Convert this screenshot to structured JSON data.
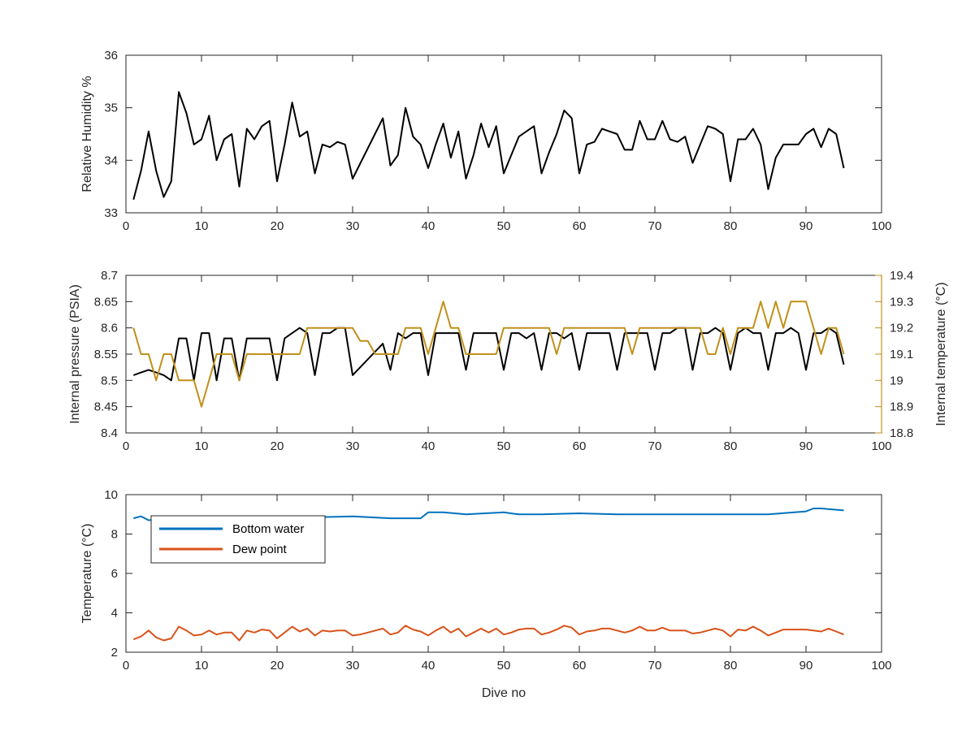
{
  "figure": {
    "xlabel": "Dive no"
  },
  "colors": {
    "black": "#000000",
    "gold": "#c0901a",
    "blue": "#0072bd",
    "orange": "#d95319",
    "axis": "#262626"
  },
  "chart_data": [
    {
      "type": "line",
      "ylabel": "Relative Humidity %",
      "xlim": [
        0,
        100
      ],
      "ylim": [
        33,
        36
      ],
      "xticks": [
        0,
        10,
        20,
        30,
        40,
        50,
        60,
        70,
        80,
        90,
        100
      ],
      "yticks": [
        33,
        34,
        35,
        36
      ],
      "series": [
        {
          "color": "#000000",
          "x": [
            1,
            2,
            3,
            4,
            5,
            6,
            7,
            8,
            9,
            10,
            11,
            12,
            13,
            14,
            15,
            16,
            17,
            18,
            19,
            20,
            21,
            22,
            23,
            24,
            25,
            26,
            27,
            28,
            29,
            30,
            34,
            35,
            36,
            37,
            38,
            39,
            40,
            41,
            42,
            43,
            44,
            45,
            46,
            47,
            48,
            49,
            50,
            52,
            54,
            55,
            56,
            57,
            58,
            59,
            60,
            61,
            62,
            63,
            64,
            65,
            66,
            67,
            68,
            69,
            70,
            71,
            72,
            73,
            74,
            75,
            77,
            78,
            79,
            80,
            81,
            82,
            83,
            84,
            85,
            86,
            87,
            88,
            89,
            90,
            91,
            92,
            93,
            94,
            95
          ],
          "y": [
            33.25,
            33.8,
            34.55,
            33.8,
            33.3,
            33.6,
            35.3,
            34.9,
            34.3,
            34.4,
            34.85,
            34.0,
            34.4,
            34.5,
            33.5,
            34.6,
            34.4,
            34.65,
            34.75,
            33.6,
            34.3,
            35.1,
            34.45,
            34.55,
            33.75,
            34.3,
            34.25,
            34.35,
            34.3,
            33.65,
            34.8,
            33.9,
            34.1,
            35.0,
            34.45,
            34.3,
            33.85,
            34.3,
            34.7,
            34.05,
            34.55,
            33.65,
            34.1,
            34.7,
            34.25,
            34.65,
            33.75,
            34.45,
            34.65,
            33.75,
            34.15,
            34.5,
            34.95,
            34.8,
            33.75,
            34.3,
            34.35,
            34.6,
            34.55,
            34.5,
            34.2,
            34.2,
            34.75,
            34.4,
            34.4,
            34.75,
            34.4,
            34.35,
            34.45,
            33.95,
            34.65,
            34.6,
            34.5,
            33.6,
            34.4,
            34.4,
            34.6,
            34.3,
            33.45,
            34.05,
            34.3,
            34.3,
            34.3,
            34.5,
            34.6,
            34.25,
            34.6,
            34.5,
            33.85
          ]
        }
      ]
    },
    {
      "type": "line",
      "ylabel": "Internal pressure (PSIA)",
      "ylabel_right": "Internal temperature (°C)",
      "xlim": [
        0,
        100
      ],
      "ylim": [
        8.4,
        8.7
      ],
      "ylim_right": [
        18.8,
        19.4
      ],
      "xticks": [
        0,
        10,
        20,
        30,
        40,
        50,
        60,
        70,
        80,
        90,
        100
      ],
      "yticks": [
        "8.4",
        "8.45",
        "8.5",
        "8.55",
        "8.6",
        "8.65",
        "8.7"
      ],
      "yticks_right": [
        "18.8",
        "18.9",
        "19",
        "19.1",
        "19.2",
        "19.3",
        "19.4"
      ],
      "series": [
        {
          "color": "#000000",
          "axis": "left",
          "x": [
            1,
            2,
            3,
            4,
            5,
            6,
            7,
            8,
            9,
            10,
            11,
            12,
            13,
            14,
            15,
            16,
            17,
            18,
            19,
            20,
            21,
            22,
            23,
            24,
            25,
            26,
            27,
            28,
            29,
            30,
            34,
            35,
            36,
            37,
            38,
            39,
            40,
            41,
            42,
            43,
            44,
            45,
            46,
            47,
            48,
            49,
            50,
            51,
            52,
            53,
            54,
            55,
            56,
            57,
            58,
            59,
            60,
            61,
            62,
            63,
            64,
            65,
            66,
            67,
            68,
            69,
            70,
            71,
            72,
            73,
            74,
            75,
            76,
            77,
            78,
            79,
            80,
            81,
            82,
            83,
            84,
            85,
            86,
            87,
            88,
            89,
            90,
            91,
            92,
            93,
            94,
            95
          ],
          "y": [
            8.51,
            8.515,
            8.52,
            8.515,
            8.51,
            8.5,
            8.58,
            8.58,
            8.5,
            8.59,
            8.59,
            8.5,
            8.58,
            8.58,
            8.5,
            8.58,
            8.58,
            8.58,
            8.58,
            8.5,
            8.58,
            8.59,
            8.6,
            8.59,
            8.51,
            8.59,
            8.59,
            8.6,
            8.6,
            8.51,
            8.57,
            8.52,
            8.59,
            8.58,
            8.59,
            8.59,
            8.51,
            8.59,
            8.59,
            8.59,
            8.59,
            8.52,
            8.59,
            8.59,
            8.59,
            8.59,
            8.52,
            8.59,
            8.59,
            8.58,
            8.59,
            8.52,
            8.59,
            8.59,
            8.58,
            8.59,
            8.52,
            8.59,
            8.59,
            8.59,
            8.59,
            8.52,
            8.59,
            8.59,
            8.59,
            8.59,
            8.52,
            8.59,
            8.59,
            8.6,
            8.6,
            8.52,
            8.59,
            8.59,
            8.6,
            8.59,
            8.52,
            8.59,
            8.6,
            8.59,
            8.59,
            8.52,
            8.59,
            8.59,
            8.6,
            8.59,
            8.52,
            8.59,
            8.59,
            8.6,
            8.59,
            8.53
          ]
        },
        {
          "color": "#c0901a",
          "axis": "right",
          "x": [
            1,
            2,
            3,
            4,
            5,
            6,
            7,
            8,
            9,
            10,
            11,
            12,
            13,
            14,
            15,
            16,
            17,
            18,
            19,
            20,
            21,
            22,
            23,
            24,
            25,
            26,
            27,
            28,
            29,
            30,
            31,
            32,
            33,
            34,
            35,
            36,
            37,
            38,
            39,
            40,
            41,
            42,
            43,
            44,
            45,
            46,
            47,
            48,
            49,
            50,
            51,
            52,
            53,
            54,
            55,
            56,
            57,
            58,
            59,
            60,
            61,
            62,
            63,
            64,
            65,
            66,
            67,
            68,
            69,
            70,
            71,
            72,
            73,
            74,
            75,
            76,
            77,
            78,
            79,
            80,
            81,
            82,
            83,
            84,
            85,
            86,
            87,
            88,
            89,
            90,
            91,
            92,
            93,
            94,
            95
          ],
          "y": [
            19.2,
            19.1,
            19.1,
            19.0,
            19.1,
            19.1,
            19.0,
            19.0,
            19.0,
            18.9,
            19.0,
            19.1,
            19.1,
            19.1,
            19.0,
            19.1,
            19.1,
            19.1,
            19.1,
            19.1,
            19.1,
            19.1,
            19.1,
            19.2,
            19.2,
            19.2,
            19.2,
            19.2,
            19.2,
            19.2,
            19.15,
            19.15,
            19.1,
            19.1,
            19.1,
            19.1,
            19.2,
            19.2,
            19.2,
            19.1,
            19.2,
            19.3,
            19.2,
            19.2,
            19.1,
            19.1,
            19.1,
            19.1,
            19.1,
            19.2,
            19.2,
            19.2,
            19.2,
            19.2,
            19.2,
            19.2,
            19.1,
            19.2,
            19.2,
            19.2,
            19.2,
            19.2,
            19.2,
            19.2,
            19.2,
            19.2,
            19.1,
            19.2,
            19.2,
            19.2,
            19.2,
            19.2,
            19.2,
            19.2,
            19.2,
            19.2,
            19.1,
            19.1,
            19.2,
            19.1,
            19.2,
            19.2,
            19.2,
            19.3,
            19.2,
            19.3,
            19.2,
            19.3,
            19.3,
            19.3,
            19.2,
            19.1,
            19.2,
            19.2,
            19.1
          ]
        }
      ]
    },
    {
      "type": "line",
      "ylabel": "Temperature (°C)",
      "xlabel": "Dive no",
      "xlim": [
        0,
        100
      ],
      "ylim": [
        2,
        10
      ],
      "xticks": [
        0,
        10,
        20,
        30,
        40,
        50,
        60,
        70,
        80,
        90,
        100
      ],
      "yticks": [
        2,
        4,
        6,
        8,
        10
      ],
      "legend_position": "top-left",
      "series": [
        {
          "name": "Bottom water",
          "color": "#0072bd",
          "x": [
            1,
            2,
            3,
            5,
            10,
            15,
            20,
            25,
            30,
            35,
            39,
            40,
            42,
            45,
            50,
            52,
            55,
            60,
            65,
            70,
            75,
            80,
            85,
            90,
            91,
            92,
            95
          ],
          "y": [
            8.8,
            8.9,
            8.7,
            8.75,
            8.75,
            8.8,
            8.8,
            8.85,
            8.9,
            8.8,
            8.8,
            9.1,
            9.1,
            9.0,
            9.1,
            9.0,
            9.0,
            9.05,
            9.0,
            9.0,
            9.0,
            9.0,
            9.0,
            9.15,
            9.3,
            9.3,
            9.2
          ]
        },
        {
          "name": "Dew point",
          "color": "#d95319",
          "x": [
            1,
            2,
            3,
            4,
            5,
            6,
            7,
            8,
            9,
            10,
            11,
            12,
            13,
            14,
            15,
            16,
            17,
            18,
            19,
            20,
            21,
            22,
            23,
            24,
            25,
            26,
            27,
            28,
            29,
            30,
            31,
            32,
            33,
            34,
            35,
            36,
            37,
            38,
            39,
            40,
            41,
            42,
            43,
            44,
            45,
            46,
            47,
            48,
            49,
            50,
            51,
            52,
            53,
            54,
            55,
            56,
            57,
            58,
            59,
            60,
            61,
            62,
            63,
            64,
            65,
            66,
            67,
            68,
            69,
            70,
            71,
            72,
            73,
            74,
            75,
            76,
            77,
            78,
            79,
            80,
            81,
            82,
            83,
            84,
            85,
            86,
            87,
            88,
            89,
            90,
            91,
            92,
            93,
            94,
            95
          ],
          "y": [
            2.65,
            2.8,
            3.1,
            2.75,
            2.6,
            2.7,
            3.3,
            3.1,
            2.85,
            2.9,
            3.1,
            2.9,
            3.0,
            3.0,
            2.6,
            3.1,
            3.0,
            3.15,
            3.1,
            2.7,
            3.0,
            3.3,
            3.05,
            3.2,
            2.85,
            3.1,
            3.05,
            3.1,
            3.1,
            2.85,
            2.9,
            3.0,
            3.1,
            3.2,
            2.9,
            3.0,
            3.35,
            3.15,
            3.05,
            2.85,
            3.1,
            3.3,
            3.0,
            3.2,
            2.8,
            3.0,
            3.2,
            3.0,
            3.2,
            2.9,
            3.0,
            3.15,
            3.2,
            3.2,
            2.9,
            3.0,
            3.15,
            3.35,
            3.25,
            2.9,
            3.05,
            3.1,
            3.2,
            3.2,
            3.1,
            3.0,
            3.1,
            3.3,
            3.1,
            3.1,
            3.25,
            3.1,
            3.1,
            3.1,
            2.95,
            3.0,
            3.1,
            3.2,
            3.1,
            2.8,
            3.15,
            3.1,
            3.3,
            3.1,
            2.85,
            3.0,
            3.15,
            3.15,
            3.15,
            3.15,
            3.1,
            3.05,
            3.2,
            3.05,
            2.9
          ]
        }
      ]
    }
  ]
}
